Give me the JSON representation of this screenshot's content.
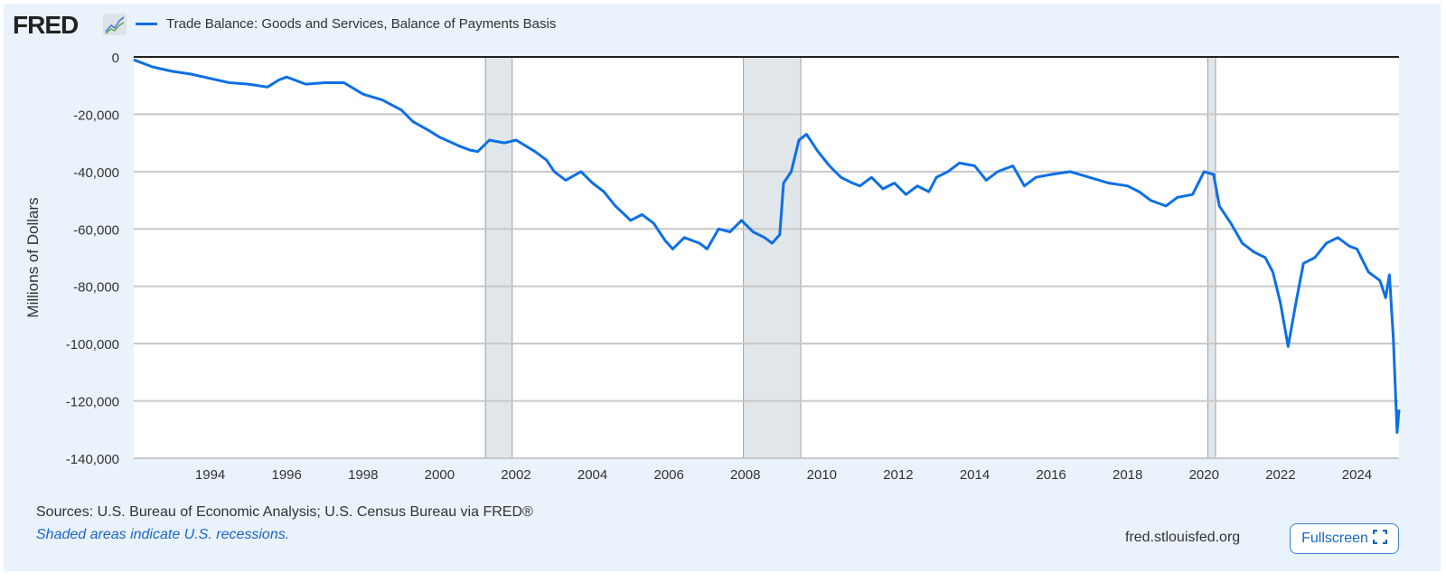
{
  "header": {
    "logo": "FRED",
    "series_name": "Trade Balance: Goods and Services, Balance of Payments Basis"
  },
  "footer": {
    "sources": "Sources: U.S. Bureau of Economic Analysis; U.S. Census Bureau via FRED®",
    "recession_note": "Shaded areas indicate U.S. recessions.",
    "site": "fred.stlouisfed.org",
    "fullscreen_label": "Fullscreen"
  },
  "colors": {
    "line": "#0e6fe5",
    "recession": "#e1e6ea",
    "background": "#eaf2fb"
  },
  "chart_data": {
    "type": "line",
    "title": "Trade Balance: Goods and Services, Balance of Payments Basis",
    "xlabel": "",
    "ylabel": "Millions of Dollars",
    "xlim": [
      1992.0,
      2025.1
    ],
    "ylim": [
      -140000,
      0
    ],
    "grid": true,
    "x_ticks": [
      1994,
      1996,
      1998,
      2000,
      2002,
      2004,
      2006,
      2008,
      2010,
      2012,
      2014,
      2016,
      2018,
      2020,
      2022,
      2024
    ],
    "y_ticks": [
      0,
      -20000,
      -40000,
      -60000,
      -80000,
      -100000,
      -120000,
      -140000
    ],
    "y_tick_labels": [
      "0",
      "-20,000",
      "-40,000",
      "-60,000",
      "-80,000",
      "-100,000",
      "-120,000",
      "-140,000"
    ],
    "recessions": [
      [
        2001.2,
        2001.9
      ],
      [
        2007.95,
        2009.45
      ],
      [
        2020.1,
        2020.3
      ]
    ],
    "series": [
      {
        "name": "Trade Balance: Goods and Services, Balance of Payments Basis",
        "x": [
          1992.0,
          1992.5,
          1993.0,
          1993.5,
          1994.0,
          1994.5,
          1995.0,
          1995.5,
          1995.8,
          1996.0,
          1996.5,
          1997.0,
          1997.5,
          1998.0,
          1998.5,
          1999.0,
          1999.3,
          1999.7,
          2000.0,
          2000.5,
          2000.8,
          2001.0,
          2001.3,
          2001.7,
          2002.0,
          2002.5,
          2002.8,
          2003.0,
          2003.3,
          2003.7,
          2004.0,
          2004.3,
          2004.6,
          2005.0,
          2005.3,
          2005.6,
          2005.9,
          2006.1,
          2006.4,
          2006.8,
          2007.0,
          2007.3,
          2007.6,
          2007.9,
          2008.2,
          2008.5,
          2008.7,
          2008.9,
          2009.0,
          2009.2,
          2009.4,
          2009.6,
          2009.9,
          2010.2,
          2010.5,
          2010.8,
          2011.0,
          2011.3,
          2011.6,
          2011.9,
          2012.2,
          2012.5,
          2012.8,
          2013.0,
          2013.3,
          2013.6,
          2014.0,
          2014.3,
          2014.6,
          2015.0,
          2015.3,
          2015.6,
          2016.0,
          2016.5,
          2017.0,
          2017.5,
          2018.0,
          2018.3,
          2018.6,
          2019.0,
          2019.3,
          2019.7,
          2020.0,
          2020.25,
          2020.4,
          2020.7,
          2021.0,
          2021.3,
          2021.6,
          2021.8,
          2022.0,
          2022.2,
          2022.4,
          2022.6,
          2022.9,
          2023.2,
          2023.5,
          2023.8,
          2024.0,
          2024.3,
          2024.6,
          2024.75,
          2024.85,
          2024.95,
          2025.05,
          2025.1
        ],
        "y": [
          -1000,
          -3500,
          -5000,
          -6000,
          -7500,
          -9000,
          -9500,
          -10500,
          -8000,
          -7000,
          -9500,
          -9000,
          -9000,
          -13000,
          -15000,
          -18500,
          -22500,
          -25500,
          -28000,
          -31000,
          -32500,
          -33000,
          -29000,
          -30000,
          -29000,
          -33000,
          -36000,
          -40000,
          -43000,
          -40000,
          -44000,
          -47000,
          -52000,
          -57000,
          -55000,
          -58000,
          -64000,
          -67000,
          -63000,
          -65000,
          -67000,
          -60000,
          -61000,
          -57000,
          -61000,
          -63000,
          -65000,
          -62000,
          -44000,
          -40000,
          -29000,
          -27000,
          -33000,
          -38000,
          -42000,
          -44000,
          -45000,
          -42000,
          -46000,
          -44000,
          -48000,
          -45000,
          -47000,
          -42000,
          -40000,
          -37000,
          -38000,
          -43000,
          -40000,
          -38000,
          -45000,
          -42000,
          -41000,
          -40000,
          -42000,
          -44000,
          -45000,
          -47000,
          -50000,
          -52000,
          -49000,
          -48000,
          -40000,
          -41000,
          -52000,
          -58000,
          -65000,
          -68000,
          -70000,
          -75000,
          -86000,
          -101000,
          -86000,
          -72000,
          -70000,
          -65000,
          -63000,
          -66000,
          -67000,
          -75000,
          -78000,
          -84000,
          -76000,
          -98000,
          -131000,
          -123000
        ]
      }
    ]
  }
}
